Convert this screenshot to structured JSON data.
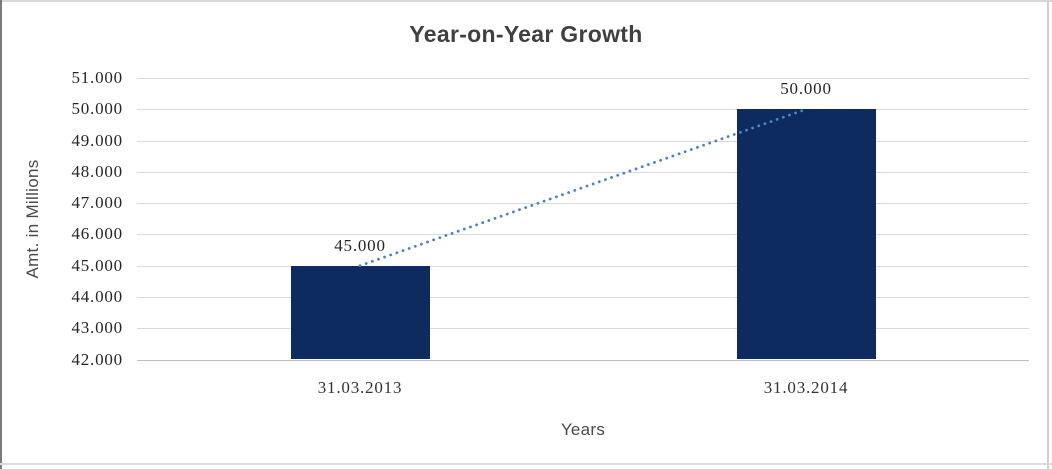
{
  "chart_data": {
    "type": "bar",
    "title": "Year-on-Year Growth",
    "xlabel": "Years",
    "ylabel": "Amt. in Millions",
    "categories": [
      "31.03.2013",
      "31.03.2014"
    ],
    "values": [
      45000,
      50000
    ],
    "value_labels": [
      "45.000",
      "50.000"
    ],
    "y_ticks": [
      "51.000",
      "50.000",
      "49.000",
      "48.000",
      "47.000",
      "46.000",
      "45.000",
      "44.000",
      "43.000",
      "42.000"
    ],
    "ylim": [
      42000,
      51000
    ],
    "y_step": 1000,
    "grid": true,
    "legend": "none",
    "trendline": {
      "style": "dotted",
      "between": "bar-tops"
    },
    "colors": {
      "bar": "#0e2b5f",
      "trendline": "#4d82c4",
      "gridline": "#d9d9d9",
      "axis_line": "#bfbfbf",
      "title_text": "#404040",
      "tick_text": "#262626",
      "axis_title_text": "#4a4a4a"
    }
  }
}
